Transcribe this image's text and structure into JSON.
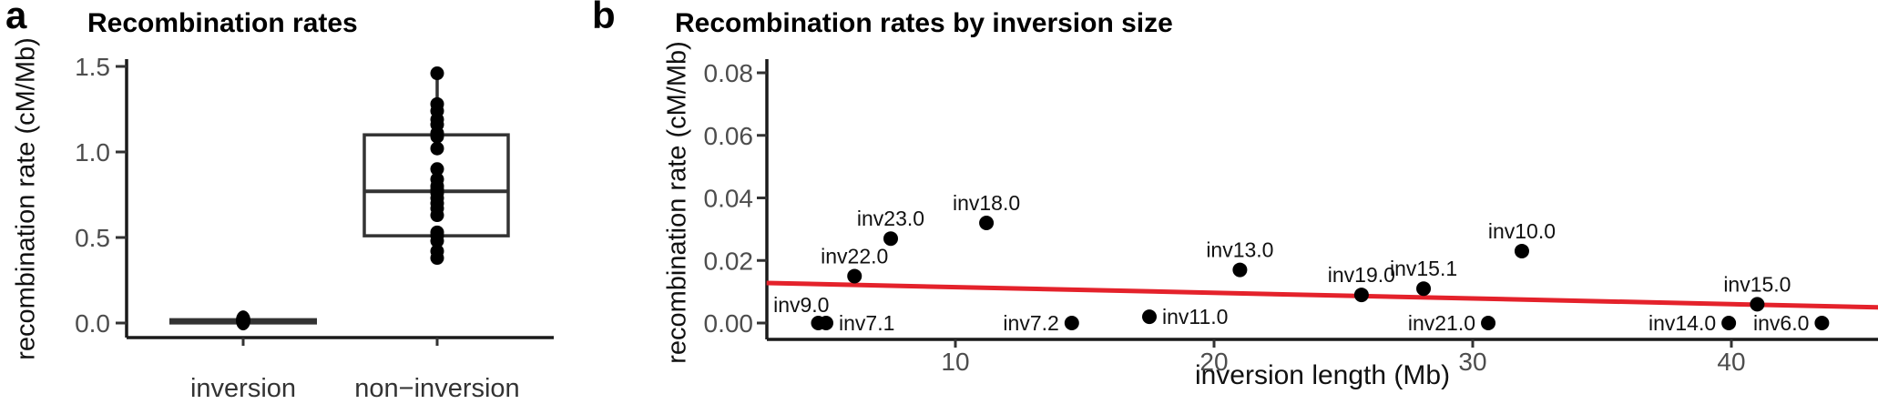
{
  "figure": {
    "panels": [
      {
        "letter": "a",
        "title": "Recombination rates"
      },
      {
        "letter": "b",
        "title": "Recombination rates by inversion size"
      }
    ]
  },
  "colors": {
    "accent_red": "#E4222B",
    "axis": "#1a1a1a",
    "box_stroke": "#333333",
    "tick_text": "#4d4d4d",
    "point": "#000000"
  },
  "chart_data": [
    {
      "type": "boxplot",
      "title": "Recombination rates",
      "xlabel": "",
      "ylabel": "recombination rate (cM/Mb)",
      "categories": [
        "inversion",
        "non−inversion"
      ],
      "yticks": [
        0.0,
        0.5,
        1.0,
        1.5
      ],
      "ytick_labels": [
        "0.0",
        "0.5",
        "1.0",
        "1.5"
      ],
      "ylim": [
        -0.08,
        1.55
      ],
      "grid": false,
      "legend": false,
      "groups": [
        {
          "category": "inversion",
          "collapsed": true,
          "stats": {
            "min": 0.0,
            "q1": 0.0,
            "median": 0.01,
            "q3": 0.02,
            "max": 0.02
          },
          "points": [
            0.01
          ]
        },
        {
          "category": "non−inversion",
          "collapsed": false,
          "stats": {
            "min": 0.38,
            "q1": 0.51,
            "median": 0.77,
            "q3": 1.1,
            "max": 1.46
          },
          "points": [
            1.46,
            1.28,
            1.24,
            1.19,
            1.16,
            1.11,
            1.09,
            1.02,
            0.9,
            0.84,
            0.8,
            0.78,
            0.76,
            0.73,
            0.7,
            0.67,
            0.63,
            0.53,
            0.51,
            0.48,
            0.42,
            0.38
          ]
        }
      ]
    },
    {
      "type": "scatter",
      "title": "Recombination rates by inversion size",
      "xlabel": "inversion length (Mb)",
      "ylabel": "recombination rate (cM/Mb)",
      "xticks": [
        10,
        20,
        30,
        40
      ],
      "xtick_labels": [
        "10",
        "20",
        "30",
        "40"
      ],
      "yticks": [
        0.0,
        0.02,
        0.04,
        0.06,
        0.08
      ],
      "ytick_labels": [
        "0.00",
        "0.02",
        "0.04",
        "0.06",
        "0.08"
      ],
      "xlim": [
        2.7,
        45.7
      ],
      "ylim": [
        -0.005,
        0.085
      ],
      "grid": false,
      "legend": false,
      "points": [
        {
          "label": "inv9.0",
          "x": 4.7,
          "y": 0.0,
          "label_pos": "above-left"
        },
        {
          "label": "inv7.1",
          "x": 5.0,
          "y": 0.0,
          "label_pos": "right"
        },
        {
          "label": "inv22.0",
          "x": 6.1,
          "y": 0.015,
          "label_pos": "above"
        },
        {
          "label": "inv23.0",
          "x": 7.5,
          "y": 0.027,
          "label_pos": "above"
        },
        {
          "label": "inv18.0",
          "x": 11.2,
          "y": 0.032,
          "label_pos": "above"
        },
        {
          "label": "inv7.2",
          "x": 14.5,
          "y": 0.0,
          "label_pos": "left"
        },
        {
          "label": "inv11.0",
          "x": 17.5,
          "y": 0.002,
          "label_pos": "right"
        },
        {
          "label": "inv13.0",
          "x": 21.0,
          "y": 0.017,
          "label_pos": "above"
        },
        {
          "label": "inv19.0",
          "x": 25.7,
          "y": 0.009,
          "label_pos": "above"
        },
        {
          "label": "inv15.1",
          "x": 28.1,
          "y": 0.011,
          "label_pos": "above"
        },
        {
          "label": "inv21.0",
          "x": 30.6,
          "y": 0.0,
          "label_pos": "left"
        },
        {
          "label": "inv10.0",
          "x": 31.9,
          "y": 0.023,
          "label_pos": "above"
        },
        {
          "label": "inv14.0",
          "x": 39.9,
          "y": 0.0,
          "label_pos": "left"
        },
        {
          "label": "inv15.0",
          "x": 41.0,
          "y": 0.006,
          "label_pos": "above"
        },
        {
          "label": "inv6.0",
          "x": 43.5,
          "y": 0.0,
          "label_pos": "left"
        }
      ],
      "trend_line": {
        "x1": 2.7,
        "y1": 0.0128,
        "x2": 45.7,
        "y2": 0.005
      }
    }
  ]
}
